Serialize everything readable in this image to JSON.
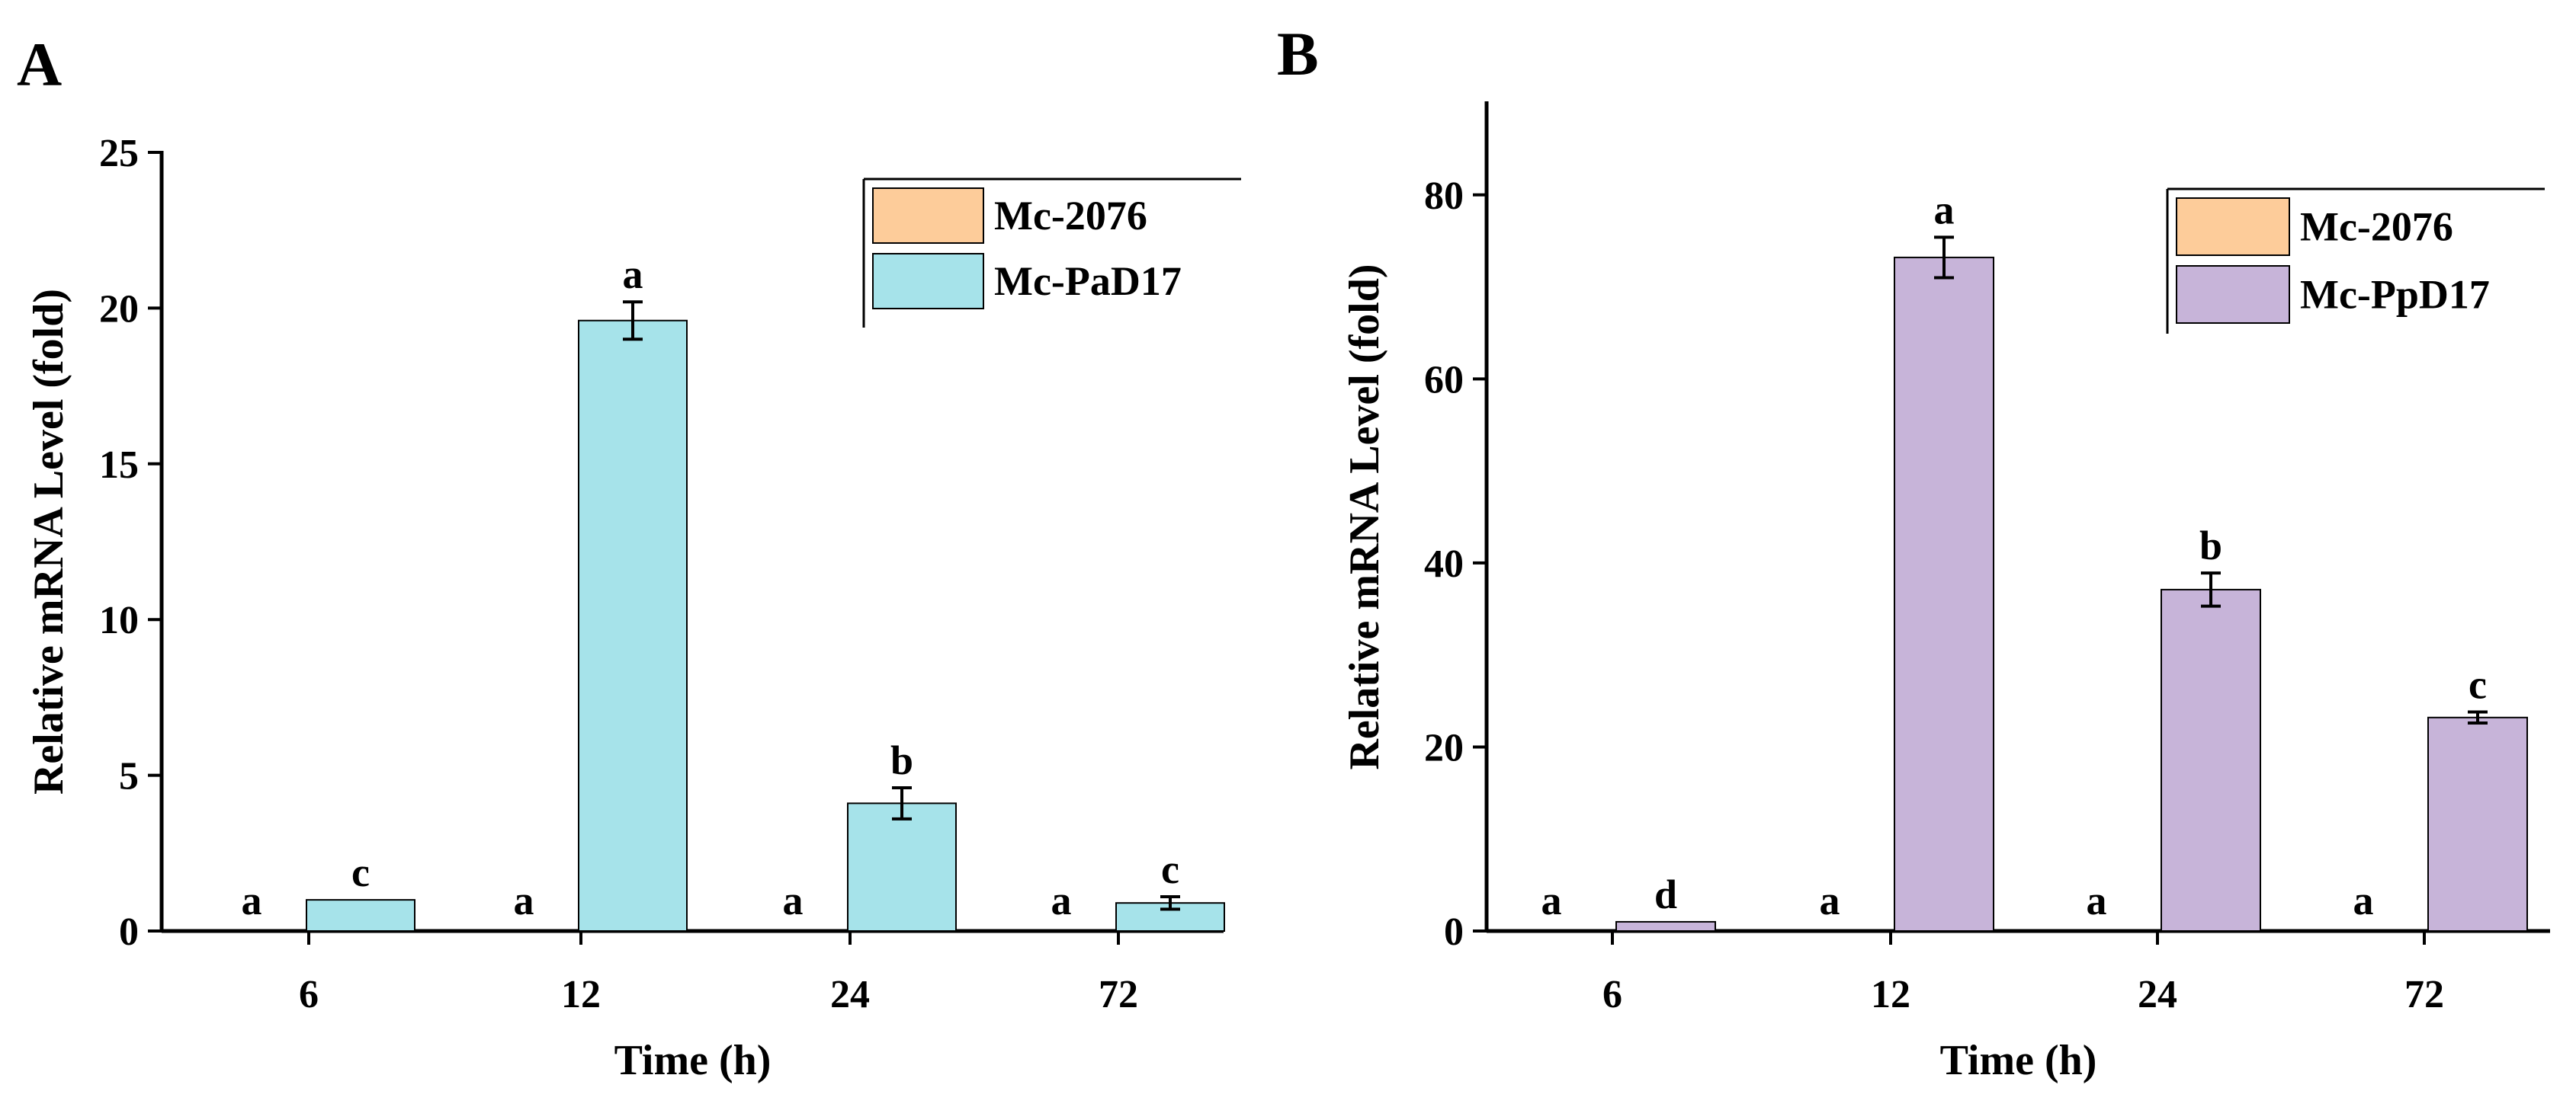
{
  "chart_data": [
    {
      "panel": "A",
      "type": "bar",
      "xlabel": "Time (h)",
      "ylabel": "Relative mRNA Level (fold)",
      "ylim": [
        0,
        25
      ],
      "yticks": [
        0,
        5,
        10,
        15,
        20,
        25
      ],
      "categories": [
        "6",
        "12",
        "24",
        "72"
      ],
      "legend_position": "top-right",
      "series": [
        {
          "name": "Mc-2076",
          "color": "#FDCC9A",
          "values": [
            0,
            0,
            0,
            0
          ],
          "errors": [
            0,
            0,
            0,
            0
          ],
          "labels": [
            "a",
            "a",
            "a",
            "a"
          ]
        },
        {
          "name": "Mc-PaD17",
          "color": "#A6E3EA",
          "values": [
            1.0,
            19.6,
            4.1,
            0.9
          ],
          "errors": [
            0,
            0.6,
            0.5,
            0.2
          ],
          "labels": [
            "c",
            "a",
            "b",
            "c"
          ]
        }
      ]
    },
    {
      "panel": "B",
      "type": "bar",
      "xlabel": "Time (h)",
      "ylabel": "Relative mRNA Level (fold)",
      "ylim": [
        0,
        90
      ],
      "yticks": [
        0,
        20,
        40,
        60,
        80
      ],
      "categories": [
        "6",
        "12",
        "24",
        "72"
      ],
      "legend_position": "top-right",
      "series": [
        {
          "name": "Mc-2076",
          "color": "#FDCC9A",
          "values": [
            0,
            0,
            0,
            0
          ],
          "errors": [
            0,
            0,
            0,
            0
          ],
          "labels": [
            "a",
            "a",
            "a",
            "a"
          ]
        },
        {
          "name": "Mc-PpD17",
          "color": "#C7B4D9",
          "values": [
            1.0,
            73.2,
            37.1,
            23.2
          ],
          "errors": [
            0,
            2.2,
            1.8,
            0.6
          ],
          "labels": [
            "d",
            "a",
            "b",
            "c"
          ]
        }
      ]
    }
  ]
}
